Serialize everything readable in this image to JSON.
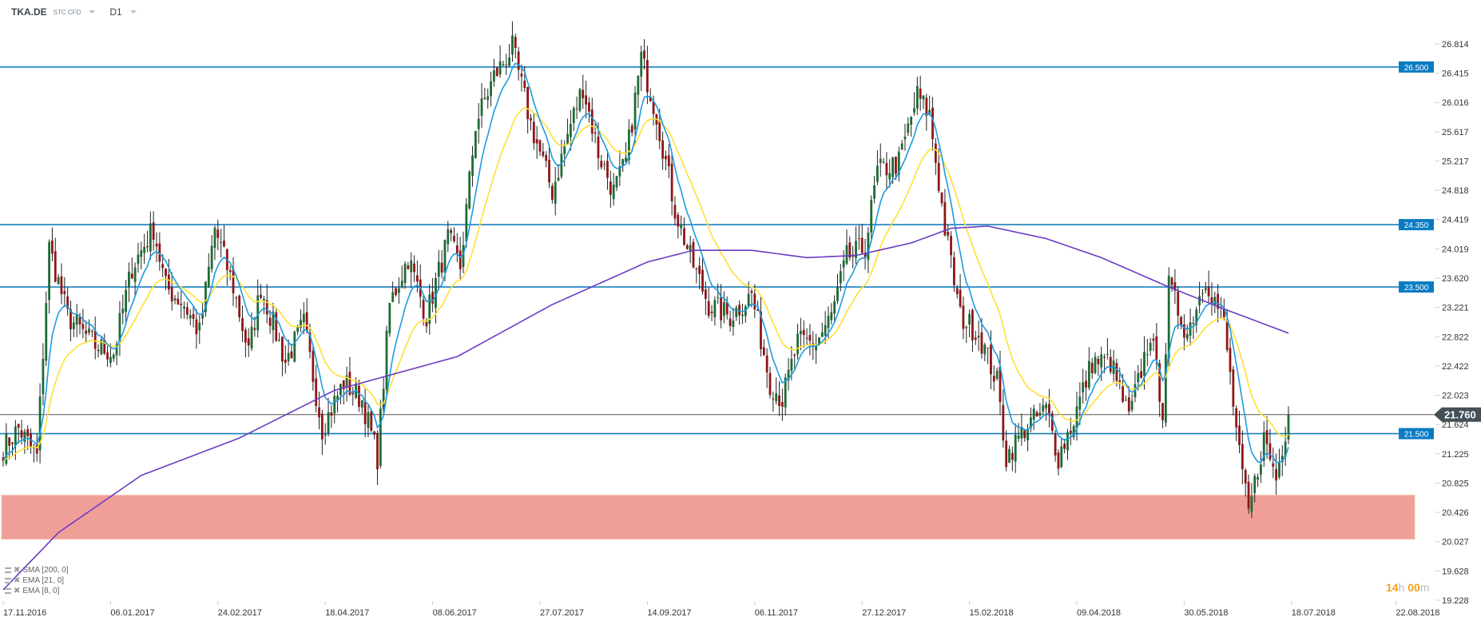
{
  "header": {
    "symbol": "TKA.DE",
    "type": "STC CFD",
    "timeframe": "D1"
  },
  "legend": [
    {
      "label": "SMA  [200,  0]"
    },
    {
      "label": "EMA  [21,  0]"
    },
    {
      "label": "EMA  [8,  0]"
    }
  ],
  "countdown": {
    "hours": "14",
    "h": "h",
    "minutes": "00",
    "m": "m"
  },
  "colors": {
    "bull": "#1e6b34",
    "bear": "#8e1616",
    "wick": "#222222",
    "ema8": "#1e9be0",
    "ema21": "#ffe033",
    "sma200": "#6b3cc4",
    "level": "#1a7fc1",
    "level_label_bg": "#0a7bc2",
    "zone": "#f09e98",
    "last_price_bg": "#444f57"
  },
  "chart_data": {
    "type": "candlestick",
    "title": "TKA.DE D1",
    "ylim": [
      19.228,
      26.814
    ],
    "y_ticks": [
      "26.814",
      "26.415",
      "26.016",
      "25.617",
      "25.217",
      "24.818",
      "24.419",
      "24.019",
      "23.620",
      "23.221",
      "22.822",
      "22.422",
      "22.023",
      "21.624",
      "21.225",
      "20.825",
      "20.426",
      "20.027",
      "19.628",
      "19.228"
    ],
    "x_ticks": [
      {
        "bar": 0,
        "label": "17.11.2016"
      },
      {
        "bar": 35,
        "label": "06.01.2017"
      },
      {
        "bar": 70,
        "label": "24.02.2017"
      },
      {
        "bar": 105,
        "label": "18.04.2017"
      },
      {
        "bar": 140,
        "label": "08.06.2017"
      },
      {
        "bar": 175,
        "label": "27.07.2017"
      },
      {
        "bar": 210,
        "label": "14.09.2017"
      },
      {
        "bar": 245,
        "label": "06.11.2017"
      },
      {
        "bar": 280,
        "label": "27.12.2017"
      },
      {
        "bar": 315,
        "label": "15.02.2018"
      },
      {
        "bar": 350,
        "label": "09.04.2018"
      },
      {
        "bar": 385,
        "label": "30.05.2018"
      },
      {
        "bar": 420,
        "label": "18.07.2018"
      },
      {
        "bar": 454,
        "label": "22.08.2018"
      }
    ],
    "close_path": [
      [
        0,
        21.3
      ],
      [
        5,
        21.57
      ],
      [
        11,
        21.18
      ],
      [
        15,
        24.04
      ],
      [
        21,
        23.1
      ],
      [
        30,
        22.7
      ],
      [
        36,
        22.6
      ],
      [
        42,
        23.77
      ],
      [
        49,
        24.3
      ],
      [
        53,
        23.5
      ],
      [
        59,
        23.26
      ],
      [
        64,
        22.87
      ],
      [
        69,
        24.3
      ],
      [
        75,
        23.5
      ],
      [
        80,
        22.6
      ],
      [
        84,
        23.5
      ],
      [
        92,
        22.48
      ],
      [
        98,
        23.0
      ],
      [
        104,
        21.57
      ],
      [
        111,
        22.2
      ],
      [
        117,
        21.96
      ],
      [
        122,
        21.18
      ],
      [
        126,
        23.26
      ],
      [
        132,
        23.9
      ],
      [
        138,
        23.1
      ],
      [
        145,
        24.16
      ],
      [
        149,
        23.77
      ],
      [
        154,
        25.72
      ],
      [
        160,
        26.37
      ],
      [
        166,
        26.76
      ],
      [
        172,
        25.72
      ],
      [
        179,
        24.8
      ],
      [
        185,
        25.72
      ],
      [
        189,
        26.24
      ],
      [
        194,
        25.33
      ],
      [
        199,
        24.8
      ],
      [
        203,
        25.2
      ],
      [
        208,
        26.63
      ],
      [
        213,
        25.85
      ],
      [
        219,
        24.56
      ],
      [
        224,
        23.9
      ],
      [
        230,
        23.26
      ],
      [
        237,
        23.1
      ],
      [
        244,
        23.4
      ],
      [
        250,
        22.2
      ],
      [
        254,
        21.96
      ],
      [
        259,
        22.74
      ],
      [
        265,
        22.74
      ],
      [
        270,
        23.1
      ],
      [
        275,
        23.9
      ],
      [
        281,
        24.04
      ],
      [
        285,
        25.07
      ],
      [
        292,
        25.2
      ],
      [
        298,
        26.11
      ],
      [
        302,
        25.85
      ],
      [
        307,
        24.3
      ],
      [
        312,
        23.1
      ],
      [
        318,
        22.87
      ],
      [
        324,
        22.2
      ],
      [
        327,
        21.18
      ],
      [
        333,
        21.57
      ],
      [
        340,
        21.83
      ],
      [
        344,
        21.18
      ],
      [
        349,
        21.7
      ],
      [
        355,
        22.48
      ],
      [
        361,
        22.48
      ],
      [
        367,
        21.7
      ],
      [
        374,
        22.87
      ],
      [
        378,
        21.83
      ],
      [
        380,
        23.5
      ],
      [
        386,
        22.87
      ],
      [
        392,
        23.64
      ],
      [
        398,
        23.0
      ],
      [
        403,
        21.18
      ],
      [
        406,
        20.4
      ],
      [
        411,
        21.44
      ],
      [
        415,
        20.9
      ],
      [
        419,
        21.76
      ]
    ],
    "sma200_path": [
      [
        0,
        19.37
      ],
      [
        18,
        20.15
      ],
      [
        45,
        20.93
      ],
      [
        77,
        21.44
      ],
      [
        108,
        22.09
      ],
      [
        148,
        22.55
      ],
      [
        179,
        23.26
      ],
      [
        210,
        23.84
      ],
      [
        225,
        24.0
      ],
      [
        244,
        24.0
      ],
      [
        262,
        23.9
      ],
      [
        278,
        23.93
      ],
      [
        296,
        24.1
      ],
      [
        309,
        24.3
      ],
      [
        321,
        24.33
      ],
      [
        340,
        24.16
      ],
      [
        358,
        23.9
      ],
      [
        380,
        23.5
      ],
      [
        398,
        23.2
      ],
      [
        419,
        22.87
      ]
    ],
    "levels": [
      {
        "price": 26.5,
        "label": "26.500"
      },
      {
        "price": 24.35,
        "label": "24.350"
      },
      {
        "price": 23.5,
        "label": "23.500"
      },
      {
        "price": 21.5,
        "label": "21.500"
      }
    ],
    "zone": {
      "from": 20.06,
      "to": 20.66
    },
    "last_price": {
      "price": 21.76,
      "label": "21.760"
    },
    "series": [
      {
        "name": "SMA 200"
      },
      {
        "name": "EMA 21"
      },
      {
        "name": "EMA 8"
      }
    ]
  }
}
